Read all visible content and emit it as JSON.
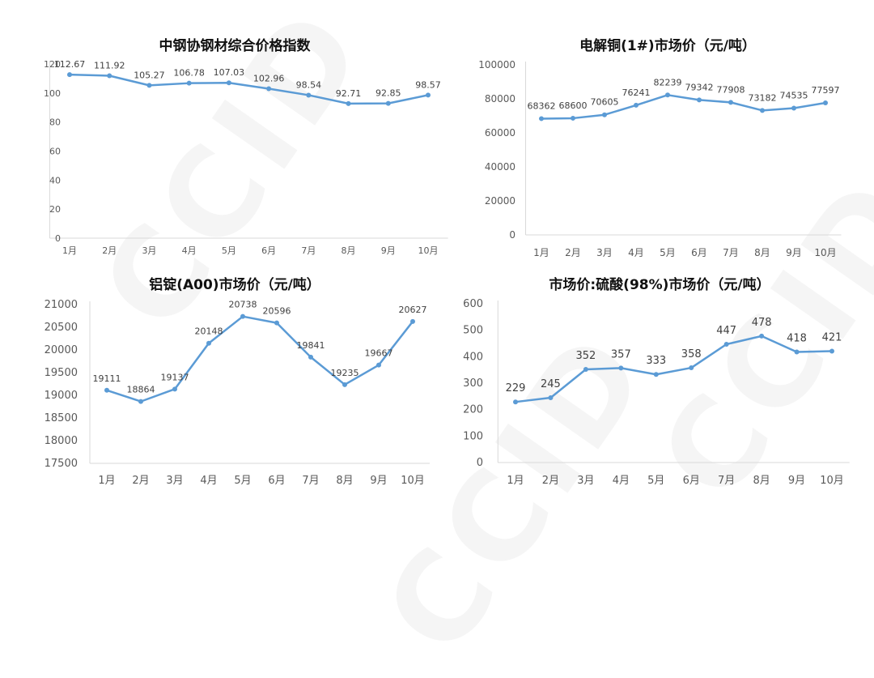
{
  "watermark": "CCID",
  "chart_data": [
    {
      "type": "line",
      "title": "中钢协钢材综合价格指数",
      "categories": [
        "1月",
        "2月",
        "3月",
        "4月",
        "5月",
        "6月",
        "7月",
        "8月",
        "9月",
        "10月"
      ],
      "values": [
        112.67,
        111.92,
        105.27,
        106.78,
        107.03,
        102.96,
        98.54,
        92.71,
        92.85,
        98.57
      ],
      "value_labels": [
        "112.67",
        "111.92",
        "105.27",
        "106.78",
        "107.03",
        "102.96",
        "98.54",
        "92.71",
        "92.85",
        "98.57"
      ],
      "y_ticks": [
        "0",
        "20",
        "40",
        "60",
        "80",
        "100",
        "120"
      ],
      "ylim": [
        0,
        120
      ],
      "grid": false,
      "color": "#5b9bd5"
    },
    {
      "type": "line",
      "title": "电解铜(1#)市场价（元/吨）",
      "categories": [
        "1月",
        "2月",
        "3月",
        "4月",
        "5月",
        "6月",
        "7月",
        "8月",
        "9月",
        "10月"
      ],
      "values": [
        68362,
        68600,
        70605,
        76241,
        82239,
        79342,
        77908,
        73182,
        74535,
        77597
      ],
      "value_labels": [
        "68362",
        "68600",
        "70605",
        "76241",
        "82239",
        "79342",
        "77908",
        "73182",
        "74535",
        "77597"
      ],
      "y_ticks": [
        "0",
        "20000",
        "40000",
        "60000",
        "80000",
        "100000"
      ],
      "ylim": [
        0,
        100000
      ],
      "grid": false,
      "color": "#5b9bd5"
    },
    {
      "type": "line",
      "title": "铝锭(A00)市场价（元/吨）",
      "categories": [
        "1月",
        "2月",
        "3月",
        "4月",
        "5月",
        "6月",
        "7月",
        "8月",
        "9月",
        "10月"
      ],
      "values": [
        19111,
        18864,
        19137,
        20148,
        20738,
        20596,
        19841,
        19235,
        19667,
        20627
      ],
      "value_labels": [
        "19111",
        "18864",
        "19137",
        "20148",
        "20738",
        "20596",
        "19841",
        "19235",
        "19667",
        "20627"
      ],
      "y_ticks": [
        "17500",
        "18000",
        "18500",
        "19000",
        "19500",
        "20000",
        "20500",
        "21000"
      ],
      "ylim": [
        17500,
        21000
      ],
      "grid": false,
      "color": "#5b9bd5"
    },
    {
      "type": "line",
      "title": "市场价:硫酸(98%)市场价（元/吨）",
      "categories": [
        "1月",
        "2月",
        "3月",
        "4月",
        "5月",
        "6月",
        "7月",
        "8月",
        "9月",
        "10月"
      ],
      "values": [
        229,
        245,
        352,
        357,
        333,
        358,
        447,
        478,
        418,
        421
      ],
      "value_labels": [
        "229",
        "245",
        "352",
        "357",
        "333",
        "358",
        "447",
        "478",
        "418",
        "421"
      ],
      "y_ticks": [
        "0",
        "100",
        "200",
        "300",
        "400",
        "500",
        "600"
      ],
      "ylim": [
        0,
        600
      ],
      "grid": false,
      "color": "#5b9bd5"
    }
  ]
}
